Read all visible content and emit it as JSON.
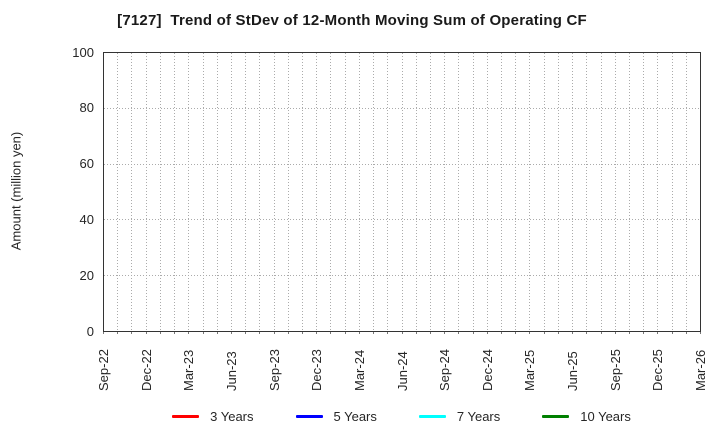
{
  "title": "[7127]  Trend of StDev of 12-Month Moving Sum of Operating CF",
  "chart_data": {
    "type": "line",
    "title": "[7127]  Trend of StDev of 12-Month Moving Sum of Operating CF",
    "xlabel": "",
    "ylabel": "Amount (million yen)",
    "ylim": [
      0,
      100
    ],
    "y_ticks": [
      0,
      20,
      40,
      60,
      80,
      100
    ],
    "x_tick_labels": [
      "Sep-22",
      "Dec-22",
      "Mar-23",
      "Jun-23",
      "Sep-23",
      "Dec-23",
      "Mar-24",
      "Jun-24",
      "Sep-24",
      "Dec-24",
      "Mar-25",
      "Jun-25",
      "Sep-25",
      "Dec-25",
      "Mar-26"
    ],
    "x_minor_divisions_per_label": 3,
    "grid": true,
    "grid_style": "dotted",
    "grid_color": "#ababab",
    "axis_color": "#333333",
    "tick_label_color": "#262626",
    "legend_position": "bottom",
    "series": [
      {
        "name": "3 Years",
        "color": "#ff0000",
        "values": []
      },
      {
        "name": "5 Years",
        "color": "#0000ff",
        "values": []
      },
      {
        "name": "7 Years",
        "color": "#00ffff",
        "values": []
      },
      {
        "name": "10 Years",
        "color": "#008000",
        "values": []
      }
    ]
  }
}
